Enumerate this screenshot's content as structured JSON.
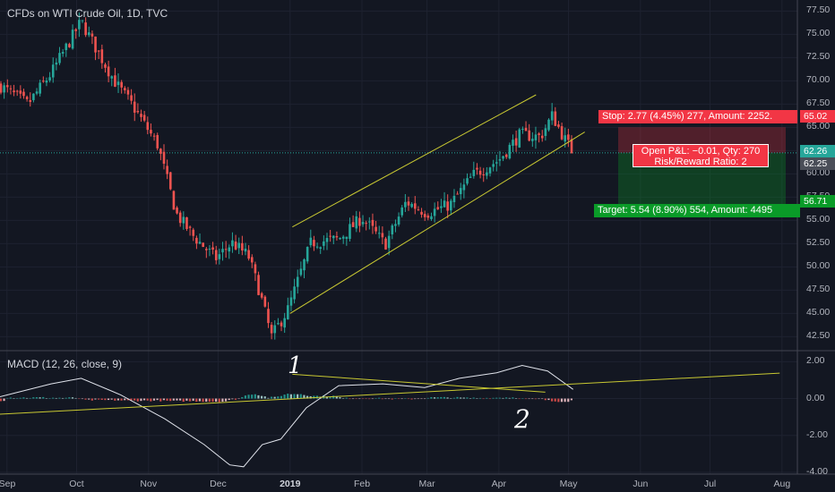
{
  "chart_title": "CFDs on WTI Crude Oil, 1D, TVC",
  "macd_title": "MACD (12, 26, close, 9)",
  "price_axis": [
    "77.50",
    "75.00",
    "72.50",
    "70.00",
    "67.50",
    "65.00",
    "62.50",
    "60.00",
    "57.50",
    "55.00",
    "52.50",
    "50.00",
    "47.50",
    "45.00",
    "42.50"
  ],
  "macd_axis": [
    "2.00",
    "0.00",
    "-2.00",
    "-4.00"
  ],
  "time_axis": [
    {
      "label": "Sep",
      "bold": false
    },
    {
      "label": "Oct",
      "bold": false
    },
    {
      "label": "Nov",
      "bold": false
    },
    {
      "label": "Dec",
      "bold": false
    },
    {
      "label": "2019",
      "bold": true
    },
    {
      "label": "Feb",
      "bold": false
    },
    {
      "label": "Mar",
      "bold": false
    },
    {
      "label": "Apr",
      "bold": false
    },
    {
      "label": "May",
      "bold": false
    },
    {
      "label": "Jun",
      "bold": false
    },
    {
      "label": "Jul",
      "bold": false
    },
    {
      "label": "Aug",
      "bold": false
    }
  ],
  "price_tags": {
    "stop": "65.02",
    "current": "62.26",
    "last": "62.25",
    "target": "56.71"
  },
  "position": {
    "stop_text": "Stop: 2.77 (4.45%) 277, Amount: 2252.",
    "target_text": "Target: 5.54 (8.90%) 554, Amount: 4495",
    "pnl_text": "Open P&L: −0.01, Qty: 270",
    "rr_text": "Risk/Reward Ratio: 2"
  },
  "annotations": {
    "mark1": "1",
    "mark2": "2"
  },
  "colors": {
    "background": "#131722",
    "up": "#26a69a",
    "down": "#ef5350",
    "channel": "#c8c832",
    "stop": "#f23645",
    "target": "#0a9b28"
  },
  "chart_data": {
    "type": "candlestick",
    "title": "CFDs on WTI Crude Oil, 1D, TVC",
    "ylim": [
      41.0,
      78.5
    ],
    "x_ticks": [
      "Sep",
      "Oct",
      "Nov",
      "Dec",
      "2019",
      "Feb",
      "Mar",
      "Apr",
      "May",
      "Jun",
      "Jul",
      "Aug"
    ],
    "close_path": [
      {
        "date": "2018-08-29",
        "close": 69.5
      },
      {
        "date": "2018-09-10",
        "close": 67.5
      },
      {
        "date": "2018-09-20",
        "close": 70.8
      },
      {
        "date": "2018-10-03",
        "close": 76.4
      },
      {
        "date": "2018-10-10",
        "close": 73.2
      },
      {
        "date": "2018-10-18",
        "close": 69.7
      },
      {
        "date": "2018-10-25",
        "close": 67.4
      },
      {
        "date": "2018-11-05",
        "close": 63.1
      },
      {
        "date": "2018-11-13",
        "close": 55.7
      },
      {
        "date": "2018-11-20",
        "close": 53.4
      },
      {
        "date": "2018-11-30",
        "close": 50.9
      },
      {
        "date": "2018-12-07",
        "close": 52.6
      },
      {
        "date": "2018-12-14",
        "close": 51.2
      },
      {
        "date": "2018-12-19",
        "close": 47.2
      },
      {
        "date": "2018-12-24",
        "close": 42.5
      },
      {
        "date": "2018-12-31",
        "close": 45.4
      },
      {
        "date": "2019-01-10",
        "close": 52.6
      },
      {
        "date": "2019-01-22",
        "close": 53.0
      },
      {
        "date": "2019-02-01",
        "close": 55.3
      },
      {
        "date": "2019-02-11",
        "close": 52.4
      },
      {
        "date": "2019-02-20",
        "close": 57.0
      },
      {
        "date": "2019-03-01",
        "close": 55.8
      },
      {
        "date": "2019-03-11",
        "close": 56.7
      },
      {
        "date": "2019-03-21",
        "close": 59.9
      },
      {
        "date": "2019-04-01",
        "close": 61.5
      },
      {
        "date": "2019-04-10",
        "close": 64.2
      },
      {
        "date": "2019-04-19",
        "close": 64.0
      },
      {
        "date": "2019-04-24",
        "close": 66.3
      },
      {
        "date": "2019-04-29",
        "close": 63.9
      },
      {
        "date": "2019-05-03",
        "close": 62.25
      }
    ],
    "channel_upper": [
      {
        "date": "2019-01-02",
        "price": 54.3
      },
      {
        "date": "2019-04-17",
        "price": 68.5
      }
    ],
    "channel_lower": [
      {
        "date": "2019-01-01",
        "price": 45.0
      },
      {
        "date": "2019-05-08",
        "price": 64.5
      }
    ],
    "position": {
      "entry": 62.26,
      "stop": 65.02,
      "target": 56.71
    },
    "macd": {
      "ylim": [
        -4.1,
        2.6
      ],
      "line": [
        {
          "date": "2018-08-29",
          "value": 0.1
        },
        {
          "date": "2018-09-20",
          "value": 0.8
        },
        {
          "date": "2018-10-03",
          "value": 1.1
        },
        {
          "date": "2018-10-20",
          "value": 0.2
        },
        {
          "date": "2018-11-08",
          "value": -1.1
        },
        {
          "date": "2018-11-25",
          "value": -2.5
        },
        {
          "date": "2018-12-06",
          "value": -3.6
        },
        {
          "date": "2018-12-12",
          "value": -3.7
        },
        {
          "date": "2018-12-20",
          "value": -2.5
        },
        {
          "date": "2018-12-28",
          "value": -2.2
        },
        {
          "date": "2019-01-08",
          "value": -0.5
        },
        {
          "date": "2019-01-22",
          "value": 0.7
        },
        {
          "date": "2019-02-10",
          "value": 0.8
        },
        {
          "date": "2019-02-28",
          "value": 0.6
        },
        {
          "date": "2019-03-15",
          "value": 1.1
        },
        {
          "date": "2019-03-31",
          "value": 1.4
        },
        {
          "date": "2019-04-11",
          "value": 1.8
        },
        {
          "date": "2019-04-22",
          "value": 1.5
        },
        {
          "date": "2019-05-03",
          "value": 0.5
        }
      ],
      "trendlines": [
        [
          {
            "date": "2018-08-29",
            "value": -0.85
          },
          {
            "date": "2019-07-31",
            "value": 1.38
          }
        ],
        [
          {
            "date": "2019-01-02",
            "value": 1.32
          },
          {
            "date": "2019-04-21",
            "value": 0.35
          }
        ]
      ]
    }
  }
}
